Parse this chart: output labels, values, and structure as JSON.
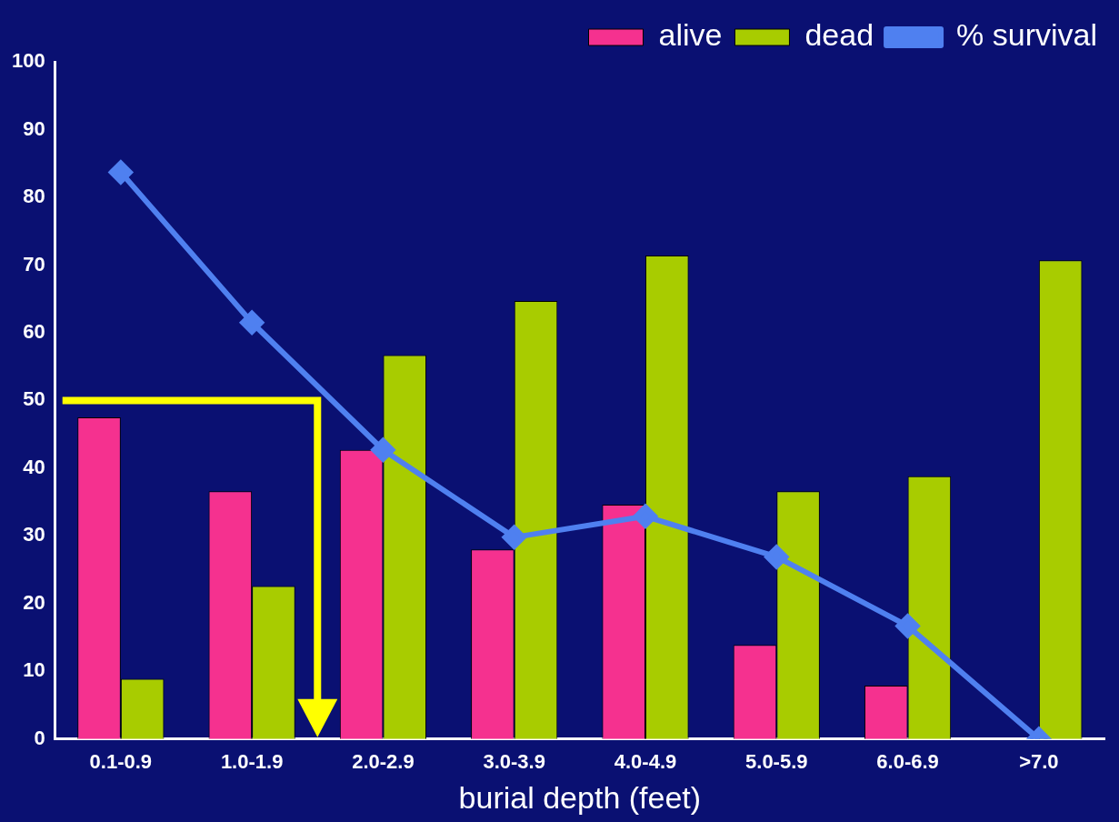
{
  "chart_data": {
    "type": "bar",
    "xlabel": "burial depth (feet)",
    "categories": [
      "0.1-0.9",
      "1.0-1.9",
      "2.0-2.9",
      "3.0-3.9",
      "4.0-4.9",
      "5.0-5.9",
      "6.0-6.9",
      ">7.0"
    ],
    "series": [
      {
        "name": "alive",
        "color": "#f5318f",
        "values": [
          47.5,
          36.6,
          42.7,
          28,
          34.6,
          13.9,
          7.9,
          0
        ]
      },
      {
        "name": "dead",
        "color": "#a8cc00",
        "values": [
          8.9,
          22.6,
          56.7,
          64.7,
          71.4,
          36.6,
          38.8,
          70.7
        ]
      },
      {
        "name": "% survival",
        "type": "line",
        "color": "#4f80f0",
        "marker": "diamond",
        "values": [
          83.7,
          61.5,
          42.7,
          29.8,
          32.9,
          26.9,
          16.7,
          0
        ]
      }
    ],
    "ylim": [
      0,
      100
    ],
    "yticks": [
      0,
      10,
      20,
      30,
      40,
      50,
      60,
      70,
      80,
      90,
      100
    ],
    "grid": false,
    "legend": "top right",
    "ref_lines": [
      {
        "axis": "y",
        "value": 50,
        "color": "#ffff00"
      }
    ]
  }
}
